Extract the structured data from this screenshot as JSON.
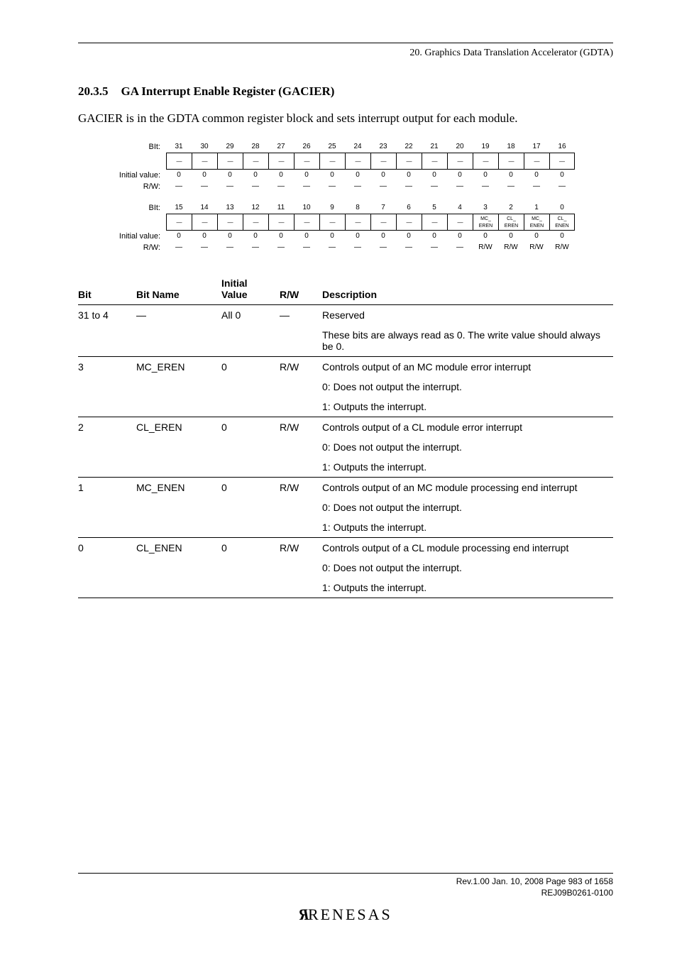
{
  "running_head": "20.   Graphics Data Translation Accelerator (GDTA)",
  "section": {
    "num": "20.3.5",
    "title": "GA Interrupt Enable Register (GACIER)"
  },
  "intro": "GACIER is in the GDTA common register block and sets interrupt output for each module.",
  "reg": {
    "row_labels": {
      "bit": "BIt:",
      "initial": "Initial value:",
      "rw": "R/W:"
    },
    "dash": "—",
    "upper": {
      "bits": [
        "31",
        "30",
        "29",
        "28",
        "27",
        "26",
        "25",
        "24",
        "23",
        "22",
        "21",
        "20",
        "19",
        "18",
        "17",
        "16"
      ],
      "names": [
        "—",
        "—",
        "—",
        "—",
        "—",
        "—",
        "—",
        "—",
        "—",
        "—",
        "—",
        "—",
        "—",
        "—",
        "—",
        "—"
      ],
      "initial": [
        "0",
        "0",
        "0",
        "0",
        "0",
        "0",
        "0",
        "0",
        "0",
        "0",
        "0",
        "0",
        "0",
        "0",
        "0",
        "0"
      ],
      "rw": [
        "—",
        "—",
        "—",
        "—",
        "—",
        "—",
        "—",
        "—",
        "—",
        "—",
        "—",
        "—",
        "—",
        "—",
        "—",
        "—"
      ]
    },
    "lower": {
      "bits": [
        "15",
        "14",
        "13",
        "12",
        "11",
        "10",
        "9",
        "8",
        "7",
        "6",
        "5",
        "4",
        "3",
        "2",
        "1",
        "0"
      ],
      "names": [
        "—",
        "—",
        "—",
        "—",
        "—",
        "—",
        "—",
        "—",
        "—",
        "—",
        "—",
        "—",
        "MC_\nEREN",
        "CL_\nEREN",
        "MC_\nENEN",
        "CL_\nENEN"
      ],
      "initial": [
        "0",
        "0",
        "0",
        "0",
        "0",
        "0",
        "0",
        "0",
        "0",
        "0",
        "0",
        "0",
        "0",
        "0",
        "0",
        "0"
      ],
      "rw": [
        "—",
        "—",
        "—",
        "—",
        "—",
        "—",
        "—",
        "—",
        "—",
        "—",
        "—",
        "—",
        "R/W",
        "R/W",
        "R/W",
        "R/W"
      ]
    }
  },
  "table": {
    "headers": {
      "bit": "Bit",
      "name": "Bit Name",
      "initial_top": "Initial",
      "initial_bot": "Value",
      "rw": "R/W",
      "desc": "Description"
    },
    "rows": [
      {
        "bit": "31 to 4",
        "name": "—",
        "init": "All 0",
        "rw": "—",
        "desc": [
          "Reserved",
          "These bits are always read as 0. The write value should always be 0."
        ]
      },
      {
        "bit": "3",
        "name": "MC_EREN",
        "init": "0",
        "rw": "R/W",
        "desc": [
          "Controls output of an MC module error interrupt",
          "0: Does not output the interrupt.",
          "1: Outputs the interrupt."
        ]
      },
      {
        "bit": "2",
        "name": "CL_EREN",
        "init": "0",
        "rw": "R/W",
        "desc": [
          "Controls output of a CL module error interrupt",
          "0: Does not output the interrupt.",
          "1: Outputs the interrupt."
        ]
      },
      {
        "bit": "1",
        "name": "MC_ENEN",
        "init": "0",
        "rw": "R/W",
        "desc": [
          "Controls output of an MC module processing end interrupt",
          "0: Does not output the interrupt.",
          "1: Outputs the interrupt."
        ]
      },
      {
        "bit": "0",
        "name": "CL_ENEN",
        "init": "0",
        "rw": "R/W",
        "desc": [
          "Controls output of a CL module processing end interrupt",
          "0: Does not output the interrupt.",
          "1: Outputs the interrupt."
        ]
      }
    ]
  },
  "footer": {
    "line1": "Rev.1.00  Jan. 10, 2008  Page 983 of 1658",
    "line2": "REJ09B0261-0100",
    "logo": "RENESAS"
  }
}
